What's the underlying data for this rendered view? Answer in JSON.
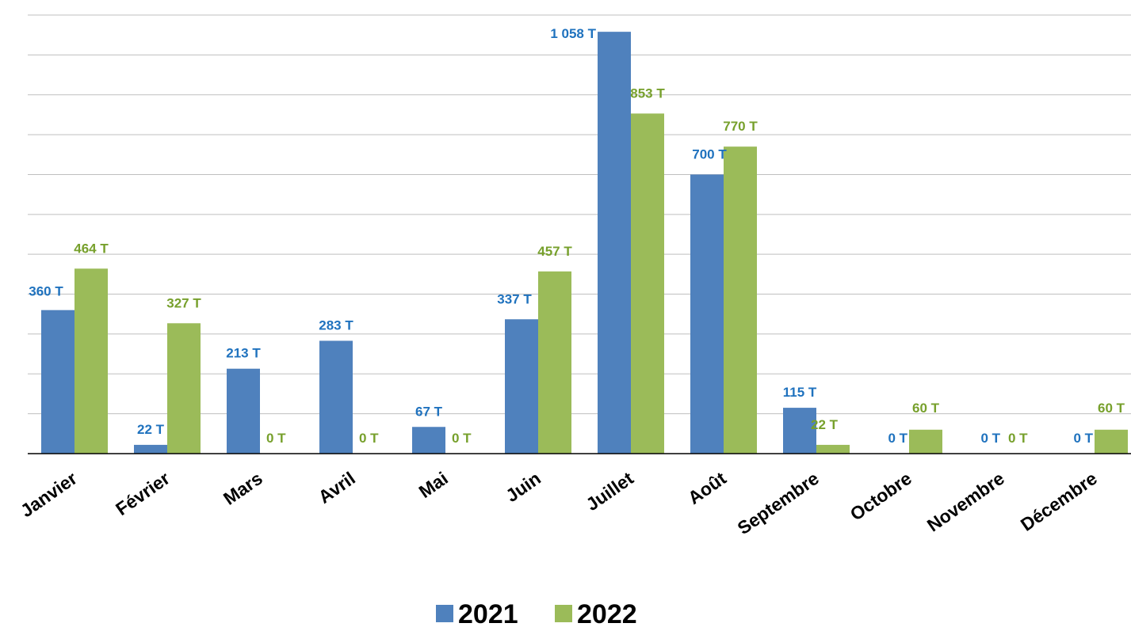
{
  "chart_data": {
    "type": "bar",
    "title": "",
    "xlabel": "",
    "ylabel": "",
    "ylim": [
      0,
      1100
    ],
    "grid": true,
    "legend": "bottom",
    "categories": [
      "Janvier",
      "Février",
      "Mars",
      "Avril",
      "Mai",
      "Juin",
      "Juillet",
      "Août",
      "Septembre",
      "Octobre",
      "Novembre",
      "Décembre"
    ],
    "series": [
      {
        "name": "2021",
        "color": "#4f81bd",
        "label_color": "#1f72be",
        "values": [
          360,
          22,
          213,
          283,
          67,
          337,
          1058,
          700,
          115,
          0,
          0,
          0
        ],
        "labels": [
          "360 T",
          "22 T",
          "213 T",
          "283 T",
          "67 T",
          "337 T",
          "1 058 T",
          "700 T",
          "115 T",
          "0 T",
          "0 T",
          "0 T"
        ]
      },
      {
        "name": "2022",
        "color": "#9bbb59",
        "label_color": "#77a02c",
        "values": [
          464,
          327,
          0,
          0,
          0,
          457,
          853,
          770,
          22,
          60,
          0,
          60
        ],
        "labels": [
          "464 T",
          "327 T",
          "0 T",
          "0 T",
          "0 T",
          "457 T",
          "853 T",
          "770 T",
          "22 T",
          "60 T",
          "0 T",
          "60 T"
        ]
      }
    ]
  }
}
